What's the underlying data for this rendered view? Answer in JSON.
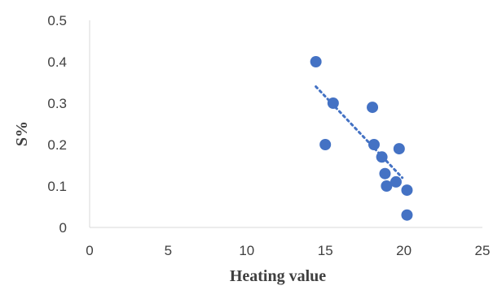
{
  "chart_data": {
    "type": "scatter",
    "title": "",
    "xlabel": "Heating value",
    "ylabel": "S%",
    "xlim": [
      0,
      25
    ],
    "ylim": [
      0,
      0.5
    ],
    "x_ticks": [
      0,
      5,
      10,
      15,
      20,
      25
    ],
    "y_ticks": [
      0,
      0.1,
      0.2,
      0.3,
      0.4,
      0.5
    ],
    "x_tick_labels": [
      "0",
      "5",
      "10",
      "15",
      "20",
      "25"
    ],
    "y_tick_labels": [
      "0",
      "0.1",
      "0.2",
      "0.3",
      "0.4",
      "0.5"
    ],
    "grid": false,
    "legend": "none",
    "series": [
      {
        "points": [
          {
            "x": 14.4,
            "y": 0.4
          },
          {
            "x": 15.0,
            "y": 0.2
          },
          {
            "x": 15.5,
            "y": 0.3
          },
          {
            "x": 18.0,
            "y": 0.29
          },
          {
            "x": 18.1,
            "y": 0.2
          },
          {
            "x": 18.6,
            "y": 0.17
          },
          {
            "x": 18.8,
            "y": 0.13
          },
          {
            "x": 18.9,
            "y": 0.1
          },
          {
            "x": 19.5,
            "y": 0.11
          },
          {
            "x": 19.7,
            "y": 0.19
          },
          {
            "x": 20.2,
            "y": 0.09
          },
          {
            "x": 20.2,
            "y": 0.03
          }
        ],
        "color": "#4472C4"
      }
    ],
    "trendline": {
      "type": "linear",
      "style": "dotted",
      "color": "#4472C4",
      "x_start": 14.4,
      "y_start": 0.34,
      "x_end": 19.9,
      "y_end": 0.12
    }
  }
}
